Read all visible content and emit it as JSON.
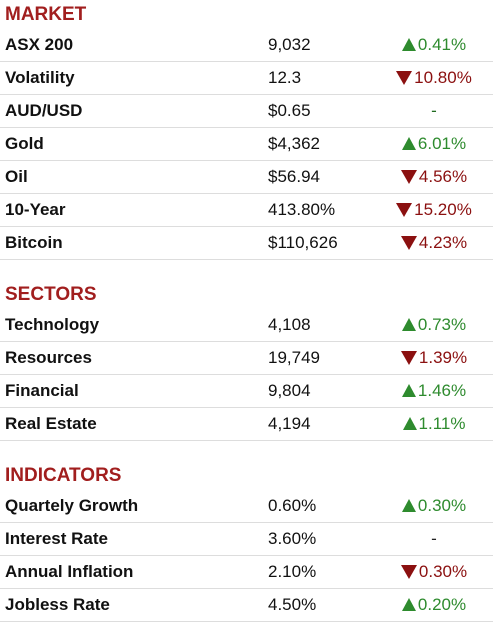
{
  "colors": {
    "heading": "#a11e1e",
    "up": "#2e8b2e",
    "down": "#8b1010",
    "divider": "#dddddd"
  },
  "market": {
    "title": "MARKET",
    "rows": [
      {
        "name": "ASX 200",
        "value": "9,032",
        "direction": "up",
        "change": "0.41%"
      },
      {
        "name": "Volatility",
        "value": "12.3",
        "direction": "down",
        "change": "10.80%"
      },
      {
        "name": "AUD/USD",
        "value": "$0.65",
        "direction": "flat",
        "change": "-"
      },
      {
        "name": "Gold",
        "value": "$4,362",
        "direction": "up",
        "change": "6.01%"
      },
      {
        "name": "Oil",
        "value": "$56.94",
        "direction": "down",
        "change": "4.56%"
      },
      {
        "name": "10-Year",
        "value": "413.80%",
        "direction": "down",
        "change": "15.20%"
      },
      {
        "name": "Bitcoin",
        "value": "$110,626",
        "direction": "down",
        "change": "4.23%"
      }
    ]
  },
  "sectors": {
    "title": "SECTORS",
    "rows": [
      {
        "name": "Technology",
        "value": "4,108",
        "direction": "up",
        "change": "0.73%"
      },
      {
        "name": "Resources",
        "value": "19,749",
        "direction": "down",
        "change": "1.39%"
      },
      {
        "name": "Financial",
        "value": "9,804",
        "direction": "up",
        "change": "1.46%"
      },
      {
        "name": "Real Estate",
        "value": "4,194",
        "direction": "up",
        "change": "1.11%"
      }
    ]
  },
  "indicators": {
    "title": "INDICATORS",
    "rows": [
      {
        "name": "Quartely Growth",
        "value": "0.60%",
        "direction": "up",
        "change": "0.30%"
      },
      {
        "name": "Interest Rate",
        "value": "3.60%",
        "direction": "flat",
        "change": "-"
      },
      {
        "name": "Annual Inflation",
        "value": "2.10%",
        "direction": "down",
        "change": "0.30%"
      },
      {
        "name": "Jobless Rate",
        "value": "4.50%",
        "direction": "up",
        "change": "0.20%"
      }
    ]
  }
}
